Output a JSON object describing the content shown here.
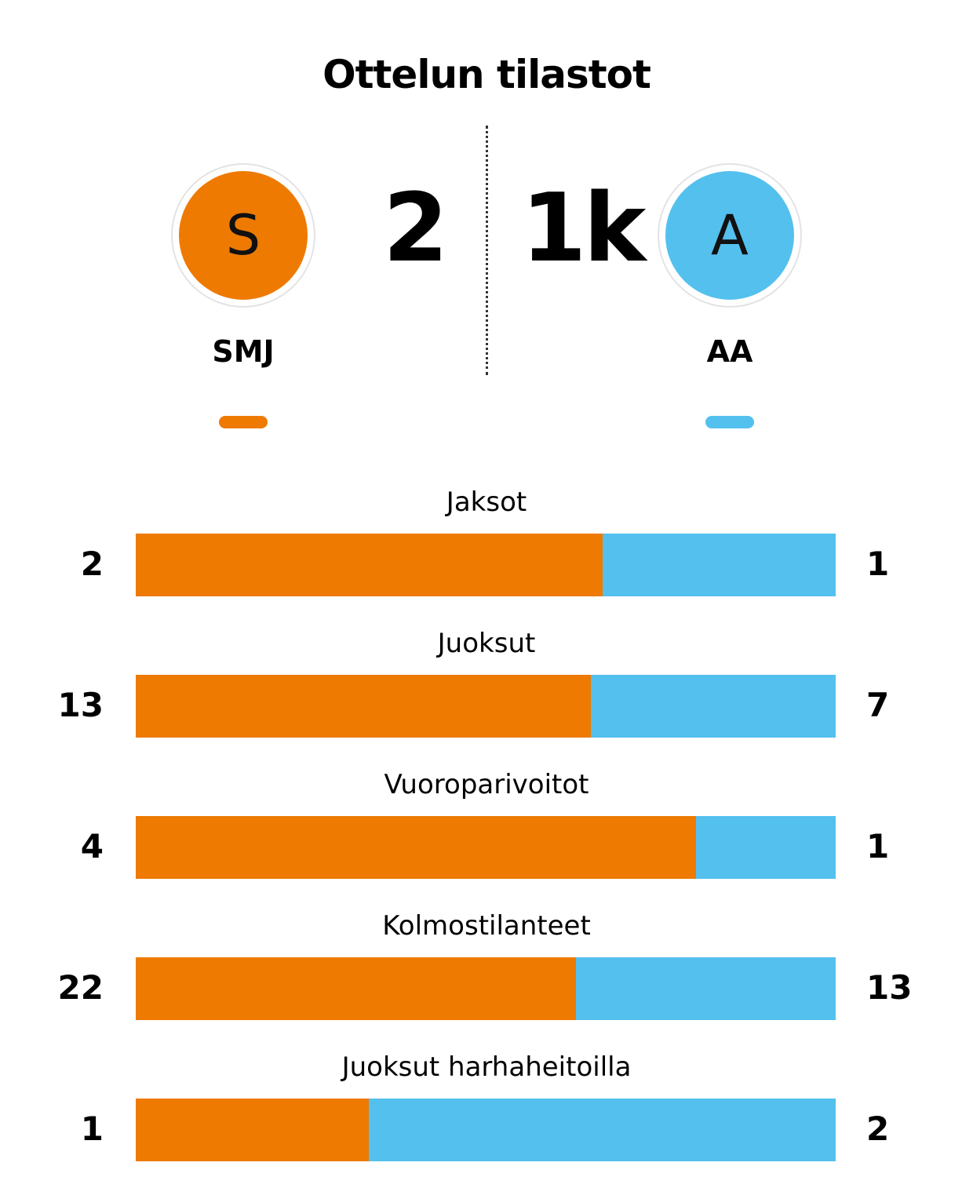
{
  "title": "Ottelun tilastot",
  "colors": {
    "home": "#ee7a02",
    "away": "#54c0ee"
  },
  "home": {
    "initial": "S",
    "name": "SMJ",
    "score": "2"
  },
  "away": {
    "initial": "A",
    "name": "AA",
    "score": "1k"
  },
  "chart_data": {
    "type": "bar",
    "orientation": "horizontal-stacked",
    "categories": [
      "Jaksot",
      "Juoksut",
      "Vuoroparivoitot",
      "Kolmostilanteet",
      "Juoksut harhaheitoilla"
    ],
    "series": [
      {
        "name": "SMJ",
        "values": [
          2,
          13,
          4,
          22,
          1
        ]
      },
      {
        "name": "AA",
        "values": [
          1,
          7,
          1,
          13,
          2
        ]
      }
    ]
  }
}
